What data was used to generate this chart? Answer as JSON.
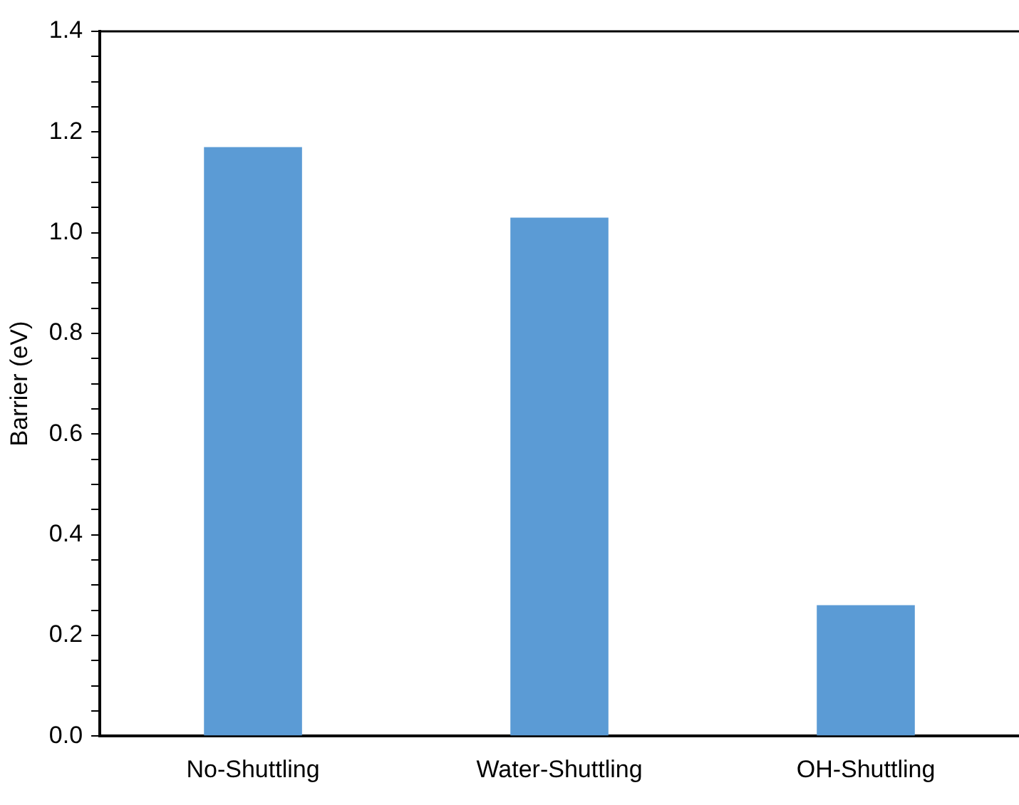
{
  "chart_data": {
    "type": "bar",
    "ylabel": "Barrier (eV)",
    "categories": [
      "No-Shuttling",
      "Water-Shuttling",
      "OH-Shuttling"
    ],
    "values": [
      1.17,
      1.03,
      0.26
    ],
    "color": "#5b9bd5",
    "ylim": [
      0,
      1.4
    ],
    "yticks": [
      {
        "value": 0,
        "label": "0.0"
      },
      {
        "value": 0.05,
        "label": null
      },
      {
        "value": 0.1,
        "label": null
      },
      {
        "value": 0.15,
        "label": null
      },
      {
        "value": 0.2,
        "label": "0.2"
      },
      {
        "value": 0.25,
        "label": null
      },
      {
        "value": 0.3,
        "label": null
      },
      {
        "value": 0.35,
        "label": null
      },
      {
        "value": 0.4,
        "label": "0.4"
      },
      {
        "value": 0.45,
        "label": null
      },
      {
        "value": 0.5,
        "label": null
      },
      {
        "value": 0.55,
        "label": null
      },
      {
        "value": 0.6,
        "label": "0.6"
      },
      {
        "value": 0.65,
        "label": null
      },
      {
        "value": 0.7,
        "label": null
      },
      {
        "value": 0.75,
        "label": null
      },
      {
        "value": 0.8,
        "label": "0.8"
      },
      {
        "value": 0.85,
        "label": null
      },
      {
        "value": 0.9,
        "label": null
      },
      {
        "value": 0.95,
        "label": null
      },
      {
        "value": 1,
        "label": "1.0"
      },
      {
        "value": 1.05,
        "label": null
      },
      {
        "value": 1.1,
        "label": null
      },
      {
        "value": 1.15,
        "label": null
      },
      {
        "value": 1.2,
        "label": "1.2"
      },
      {
        "value": 1.25,
        "label": null
      },
      {
        "value": 1.3,
        "label": null
      },
      {
        "value": 1.35,
        "label": null
      },
      {
        "value": 1.4,
        "label": "1.4"
      }
    ],
    "grid": false
  }
}
